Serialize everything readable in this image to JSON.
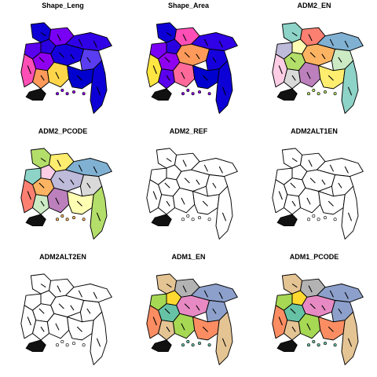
{
  "figure": {
    "panels": [
      {
        "title": "Shape_Leng",
        "palette": [
          "#0d00d6",
          "#2a00e0",
          "#5a00ee",
          "#7a00f5",
          "#3000e6",
          "#1500dd",
          "#9000f0",
          "#ff4fb6",
          "#ff9a5a",
          "#ffd64a",
          "#5a3df0",
          "#0000cf"
        ]
      },
      {
        "title": "Shape_Area",
        "palette": [
          "#0d00d6",
          "#2a00e0",
          "#7a00f5",
          "#ff4fb6",
          "#3000e6",
          "#ff9a5a",
          "#9000f0",
          "#ffe642",
          "#5a00ee",
          "#ff6a9a",
          "#1500dd",
          "#0000cf"
        ]
      },
      {
        "title": "ADM2_EN",
        "palette": [
          "#8dd3c7",
          "#ffffb3",
          "#bebada",
          "#fb8072",
          "#80b1d3",
          "#fdb462",
          "#b3de69",
          "#fccde5",
          "#d9d9d9",
          "#bc80bd",
          "#ccebc5",
          "#ffed6f"
        ]
      },
      {
        "title": "ADM2_PCODE",
        "palette": [
          "#b3de69",
          "#fccde5",
          "#8dd3c7",
          "#ffed6f",
          "#80b1d3",
          "#bebada",
          "#fdb462",
          "#fb8072",
          "#ccebc5",
          "#bc80bd",
          "#d9d9d9",
          "#ffffb3"
        ]
      },
      {
        "title": "ADM2_REF",
        "palette": [
          "#ffffff",
          "#ffffff",
          "#ffffff",
          "#ffffff",
          "#ffffff",
          "#ffffff",
          "#ffffff",
          "#ffffff",
          "#ffffff",
          "#ffffff",
          "#ffffff",
          "#ffffff"
        ]
      },
      {
        "title": "ADM2ALT1EN",
        "palette": [
          "#ffffff",
          "#ffffff",
          "#ffffff",
          "#ffffff",
          "#ffffff",
          "#ffffff",
          "#ffffff",
          "#ffffff",
          "#ffffff",
          "#ffffff",
          "#ffffff",
          "#ffffff"
        ]
      },
      {
        "title": "ADM2ALT2EN",
        "palette": [
          "#ffffff",
          "#ffffff",
          "#ffffff",
          "#ffffff",
          "#ffffff",
          "#ffffff",
          "#ffffff",
          "#ffffff",
          "#ffffff",
          "#ffffff",
          "#ffffff",
          "#ffffff"
        ]
      },
      {
        "title": "ADM1_EN",
        "palette": [
          "#e5c494",
          "#ffd92f",
          "#a6d854",
          "#b3b3b3",
          "#8da0cb",
          "#e78ac3",
          "#66c2a5",
          "#fc8d62",
          "#e5c494",
          "#a6d854",
          "#8da0cb",
          "#fc8d62"
        ]
      },
      {
        "title": "ADM1_PCODE",
        "palette": [
          "#e5c494",
          "#ffd92f",
          "#a6d854",
          "#b3b3b3",
          "#8da0cb",
          "#e78ac3",
          "#66c2a5",
          "#fc8d62",
          "#e5c494",
          "#a6d854",
          "#8da0cb",
          "#fc8d62"
        ]
      }
    ]
  }
}
